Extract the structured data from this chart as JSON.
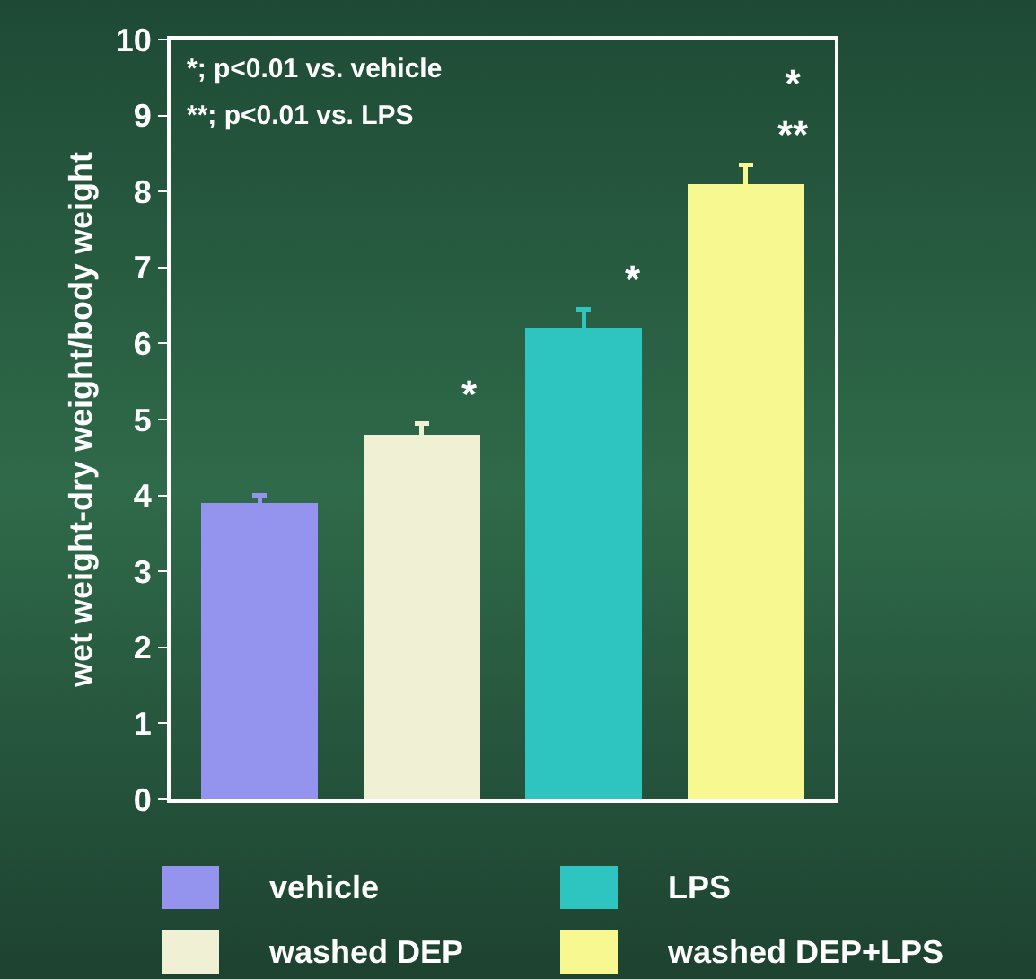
{
  "chart_data": {
    "type": "bar",
    "ylabel": "wet weight-dry weight/body weight",
    "categories": [
      null,
      null,
      null,
      null
    ],
    "stacked": true,
    "series": [
      {
        "name": "vehicle",
        "color": "#9494ee",
        "values": [
          3.9,
          null,
          null,
          null
        ],
        "errors": [
          0.1,
          null,
          null,
          null
        ],
        "value_labels": [
          null,
          null,
          null,
          null
        ]
      },
      {
        "name": "washed DEP",
        "color": "#f0f0d4",
        "values": [
          null,
          4.8,
          null,
          null
        ],
        "errors": [
          null,
          0.15,
          null,
          null
        ],
        "value_labels": [
          null,
          "*",
          null,
          null
        ]
      },
      {
        "name": "LPS",
        "color": "#2ec4c0",
        "values": [
          null,
          null,
          6.2,
          null
        ],
        "errors": [
          null,
          null,
          0.25,
          null
        ],
        "value_labels": [
          null,
          null,
          "*",
          null
        ]
      },
      {
        "name": "washed DEP+LPS",
        "color": "#f8f890",
        "values": [
          null,
          null,
          null,
          8.1
        ],
        "errors": [
          null,
          null,
          null,
          0.25
        ],
        "value_labels": [
          null,
          null,
          null,
          "*\n**"
        ]
      }
    ],
    "ylim": [
      0,
      10
    ],
    "yticks": [
      0,
      1,
      2,
      3,
      4,
      5,
      6,
      7,
      8,
      9,
      10
    ],
    "grid": false,
    "legend": "bottom",
    "tick_labels": "y",
    "annotations": [
      "*; p<0.01 vs. vehicle",
      "**; p<0.01 vs. LPS"
    ]
  }
}
